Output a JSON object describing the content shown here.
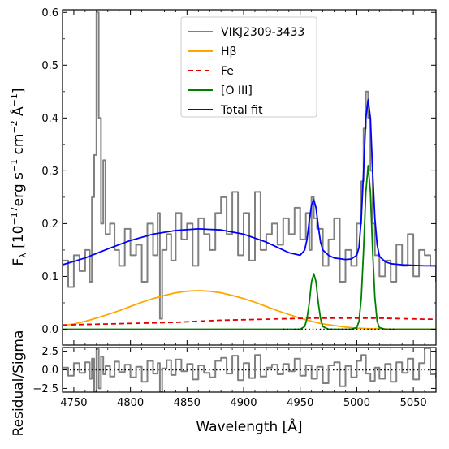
{
  "chart_data": [
    {
      "type": "line",
      "panel": "main",
      "title": "",
      "xlabel": "",
      "ylabel": "Fλ [10⁻¹⁷erg s⁻¹ cm⁻² Å⁻¹]",
      "ylabel_parts": {
        "main": "F",
        "sub": "λ",
        "text1": " [10",
        "sup1": "−17",
        "text2": "erg s",
        "sup2": "−1",
        "text3": " cm",
        "sup3": "−2",
        "text4": " Å",
        "sup4": "−1",
        "text5": "]"
      },
      "xlim": [
        4740,
        5070
      ],
      "ylim": [
        -0.03,
        0.605
      ],
      "xticks": [
        4750,
        4800,
        4850,
        4900,
        4950,
        5000,
        5050
      ],
      "yticks": [
        0.0,
        0.1,
        0.2,
        0.3,
        0.4,
        0.5,
        0.6
      ],
      "ytick_labels": [
        "0.0",
        "0.1",
        "0.2",
        "0.3",
        "0.4",
        "0.5",
        "0.6"
      ],
      "legend_position": "upper-center",
      "series": [
        {
          "name": "VIKJ2309-3433",
          "style": "step",
          "color": "#808080",
          "x": [
            4740,
            4745,
            4750,
            4755,
            4760,
            4764,
            4766,
            4768,
            4770,
            4772,
            4774,
            4776,
            4778,
            4782,
            4786,
            4790,
            4795,
            4800,
            4805,
            4810,
            4815,
            4820,
            4824,
            4826,
            4828,
            4832,
            4836,
            4840,
            4845,
            4850,
            4855,
            4860,
            4865,
            4870,
            4875,
            4880,
            4885,
            4890,
            4895,
            4900,
            4905,
            4910,
            4915,
            4920,
            4925,
            4930,
            4935,
            4940,
            4945,
            4950,
            4955,
            4958,
            4960,
            4962,
            4965,
            4970,
            4975,
            4980,
            4985,
            4990,
            4995,
            5000,
            5004,
            5006,
            5008,
            5010,
            5012,
            5014,
            5016,
            5020,
            5025,
            5030,
            5035,
            5040,
            5045,
            5050,
            5055,
            5060,
            5065,
            5070
          ],
          "y": [
            0.13,
            0.08,
            0.14,
            0.11,
            0.15,
            0.09,
            0.25,
            0.33,
            0.6,
            0.4,
            0.2,
            0.32,
            0.18,
            0.2,
            0.15,
            0.12,
            0.19,
            0.14,
            0.16,
            0.09,
            0.2,
            0.14,
            0.22,
            0.02,
            0.15,
            0.18,
            0.13,
            0.22,
            0.17,
            0.2,
            0.12,
            0.21,
            0.18,
            0.15,
            0.22,
            0.25,
            0.18,
            0.26,
            0.14,
            0.22,
            0.13,
            0.26,
            0.15,
            0.18,
            0.2,
            0.16,
            0.21,
            0.18,
            0.23,
            0.17,
            0.22,
            0.15,
            0.25,
            0.21,
            0.19,
            0.12,
            0.17,
            0.21,
            0.09,
            0.15,
            0.12,
            0.2,
            0.28,
            0.38,
            0.45,
            0.4,
            0.3,
            0.2,
            0.14,
            0.1,
            0.13,
            0.09,
            0.16,
            0.12,
            0.18,
            0.1,
            0.15,
            0.14,
            0.12,
            0.09
          ]
        },
        {
          "name": "Hβ",
          "style": "solid",
          "color": "#ffa500",
          "x": [
            4740,
            4750,
            4760,
            4770,
            4780,
            4790,
            4800,
            4810,
            4820,
            4830,
            4840,
            4850,
            4860,
            4870,
            4880,
            4890,
            4900,
            4910,
            4920,
            4930,
            4940,
            4950,
            4960,
            4970,
            4980,
            4990,
            5000,
            5010,
            5020,
            5030,
            5040,
            5050,
            5060,
            5070
          ],
          "y": [
            0.007,
            0.01,
            0.015,
            0.021,
            0.028,
            0.035,
            0.043,
            0.051,
            0.058,
            0.064,
            0.069,
            0.072,
            0.073,
            0.072,
            0.069,
            0.064,
            0.058,
            0.051,
            0.043,
            0.035,
            0.028,
            0.021,
            0.015,
            0.01,
            0.007,
            0.004,
            0.002,
            0.001,
            0.001,
            0.0,
            0.0,
            0.0,
            0.0,
            0.0
          ]
        },
        {
          "name": "Fe",
          "style": "dashed",
          "color": "#e00000",
          "x": [
            4740,
            4760,
            4780,
            4800,
            4820,
            4840,
            4860,
            4880,
            4900,
            4920,
            4940,
            4960,
            4980,
            5000,
            5020,
            5040,
            5060,
            5070
          ],
          "y": [
            0.008,
            0.009,
            0.01,
            0.011,
            0.012,
            0.013,
            0.015,
            0.017,
            0.018,
            0.019,
            0.02,
            0.021,
            0.021,
            0.021,
            0.021,
            0.02,
            0.019,
            0.019
          ]
        },
        {
          "name": "[O III]",
          "style": "solid",
          "color": "#008000",
          "x": [
            4740,
            4940,
            4950,
            4954,
            4956,
            4958,
            4960,
            4962,
            4964,
            4966,
            4968,
            4970,
            4975,
            4985,
            4995,
            5000,
            5002,
            5004,
            5006,
            5008,
            5010,
            5012,
            5014,
            5016,
            5018,
            5020,
            5025,
            5035,
            5070
          ],
          "y": [
            0,
            0,
            0.0,
            0.005,
            0.02,
            0.05,
            0.09,
            0.105,
            0.09,
            0.05,
            0.02,
            0.005,
            0,
            0,
            0,
            0.003,
            0.015,
            0.06,
            0.15,
            0.26,
            0.31,
            0.26,
            0.15,
            0.06,
            0.015,
            0.003,
            0,
            0,
            0
          ]
        },
        {
          "name": "Total fit",
          "style": "solid",
          "color": "#0000ff",
          "x": [
            4740,
            4760,
            4780,
            4800,
            4820,
            4840,
            4860,
            4880,
            4900,
            4920,
            4930,
            4940,
            4950,
            4954,
            4956,
            4958,
            4960,
            4962,
            4964,
            4966,
            4968,
            4970,
            4975,
            4980,
            4990,
            4995,
            5000,
            5002,
            5004,
            5006,
            5008,
            5010,
            5012,
            5014,
            5016,
            5018,
            5020,
            5025,
            5030,
            5040,
            5050,
            5060,
            5070
          ],
          "y": [
            0.122,
            0.135,
            0.152,
            0.168,
            0.18,
            0.187,
            0.19,
            0.188,
            0.18,
            0.165,
            0.155,
            0.145,
            0.14,
            0.15,
            0.17,
            0.205,
            0.235,
            0.245,
            0.23,
            0.195,
            0.165,
            0.15,
            0.14,
            0.135,
            0.132,
            0.133,
            0.14,
            0.155,
            0.21,
            0.3,
            0.4,
            0.435,
            0.4,
            0.3,
            0.21,
            0.16,
            0.138,
            0.128,
            0.124,
            0.122,
            0.121,
            0.12,
            0.12
          ]
        },
        {
          "name": "",
          "style": "dotted",
          "color": "#000000",
          "x": [
            4935,
            5035
          ],
          "y": [
            0.0,
            0.0
          ]
        }
      ]
    },
    {
      "type": "line",
      "panel": "residual",
      "title": "",
      "xlabel": "Wavelength [Å]",
      "ylabel": "Residual/Sigma",
      "xlim": [
        4740,
        5070
      ],
      "ylim": [
        -3.0,
        3.0
      ],
      "xticks": [
        4750,
        4800,
        4850,
        4900,
        4950,
        5000,
        5050
      ],
      "xtick_labels": [
        "4750",
        "4800",
        "4850",
        "4900",
        "4950",
        "5000",
        "5050"
      ],
      "yticks": [
        -2.5,
        0.0,
        2.5
      ],
      "ytick_labels": [
        "−2.5",
        "0.0",
        "2.5"
      ],
      "series": [
        {
          "name": "",
          "style": "step",
          "color": "#808080",
          "x": [
            4740,
            4745,
            4750,
            4755,
            4760,
            4764,
            4766,
            4768,
            4770,
            4772,
            4774,
            4776,
            4778,
            4782,
            4786,
            4790,
            4795,
            4800,
            4805,
            4810,
            4815,
            4820,
            4824,
            4826,
            4828,
            4832,
            4836,
            4840,
            4845,
            4850,
            4855,
            4860,
            4865,
            4870,
            4875,
            4880,
            4885,
            4890,
            4895,
            4900,
            4905,
            4910,
            4915,
            4920,
            4925,
            4930,
            4935,
            4940,
            4945,
            4950,
            4955,
            4960,
            4965,
            4970,
            4975,
            4980,
            4985,
            4990,
            4995,
            5000,
            5004,
            5008,
            5012,
            5016,
            5020,
            5025,
            5030,
            5035,
            5040,
            5045,
            5050,
            5055,
            5060,
            5065,
            5070
          ],
          "y": [
            0.3,
            -0.8,
            0.9,
            -0.4,
            1.0,
            -1.2,
            1.5,
            -3.0,
            2.8,
            -2.5,
            1.8,
            -0.6,
            0.5,
            -0.9,
            1.1,
            -0.3,
            0.7,
            -1.0,
            0.4,
            -1.6,
            1.2,
            -0.5,
            0.9,
            -3.0,
            0.2,
            1.3,
            -0.7,
            1.4,
            -0.2,
            0.8,
            -1.3,
            0.6,
            -0.4,
            -1.0,
            1.2,
            1.6,
            -0.5,
            1.9,
            -1.4,
            0.9,
            -1.1,
            2.0,
            -0.9,
            0.3,
            0.7,
            -0.6,
            0.8,
            -0.2,
            1.5,
            -0.8,
            0.6,
            -1.2,
            0.4,
            -1.8,
            0.6,
            1.0,
            -2.2,
            0.5,
            -1.0,
            1.2,
            2.0,
            -0.5,
            -1.5,
            0.3,
            -1.2,
            0.8,
            -1.6,
            1.0,
            -0.4,
            1.5,
            -1.3,
            0.9,
            2.9,
            -0.6,
            -1.1
          ]
        },
        {
          "name": "",
          "style": "dotted",
          "color": "#000000",
          "x": [
            4740,
            5070
          ],
          "y": [
            0,
            0
          ]
        }
      ]
    }
  ]
}
